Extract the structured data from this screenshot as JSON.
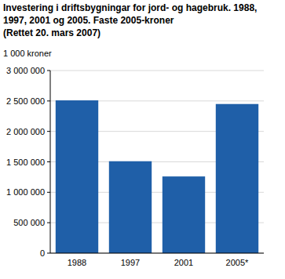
{
  "chart_data": {
    "type": "bar",
    "title": "Investering i driftsbygningar for jord- og hagebruk. 1988, 1997, 2001 og 2005. Faste 2005-kroner",
    "subtitle": "(Rettet 20. mars 2007)",
    "y_label": "1 000 kroner",
    "categories": [
      "1988",
      "1997",
      "2001",
      "2005*"
    ],
    "values": [
      2510000,
      1510000,
      1260000,
      2450000
    ],
    "color": "#1f5fa8",
    "ylim": [
      0,
      3000000
    ],
    "yticks": [
      0,
      {
        "value": 500000,
        "label": "500 000"
      },
      {
        "value": 1000000,
        "label": "1 000 000"
      },
      {
        "value": 1500000,
        "label": "1 500 000"
      },
      {
        "value": 2000000,
        "label": "2 000 000"
      },
      {
        "value": 2500000,
        "label": "2 500 000"
      },
      {
        "value": 3000000,
        "label": "3 000 000"
      }
    ],
    "grid": true
  }
}
